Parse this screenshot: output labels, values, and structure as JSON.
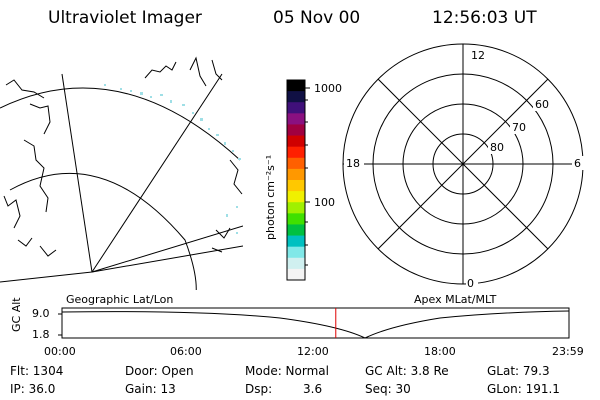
{
  "header": {
    "instrument": "Ultraviolet Imager",
    "date": "05 Nov 00",
    "time": "12:56:03 UT"
  },
  "colorbar": {
    "unit_label": "photon cm⁻²s⁻¹",
    "tick_labels": [
      "1000",
      "100"
    ],
    "colors": [
      "#000000",
      "#101044",
      "#40107a",
      "#8a1080",
      "#a00040",
      "#d00000",
      "#ff2000",
      "#ff6000",
      "#ff9800",
      "#ffc800",
      "#f0f000",
      "#a0f000",
      "#40e000",
      "#00c040",
      "#00c0c0",
      "#80e8e8",
      "#d0f0f0",
      "#f4f4f4"
    ]
  },
  "map_left": {
    "caption": "Geographic Lat/Lon"
  },
  "polar_right": {
    "caption": "Apex MLat/MLT",
    "mlt_labels": {
      "top": "12",
      "right": "6",
      "bottom": "0",
      "left": "18"
    },
    "lat_labels": [
      "60",
      "70",
      "80"
    ]
  },
  "altitude_strip": {
    "ylabel": "GC Alt",
    "yticks": [
      "9.0",
      "1.8"
    ],
    "xticks": [
      "00:00",
      "06:00",
      "12:00",
      "18:00",
      "23:59"
    ],
    "current_time_fraction": 0.54
  },
  "footer": {
    "flt": "Flt: 1304",
    "ip": "IP: 36.0",
    "door": "Door: Open",
    "gain": "Gain: 13",
    "mode": "Mode: Normal",
    "dsp_label": "Dsp:",
    "dsp_value": "3.6",
    "gc_alt": "GC Alt: 3.8 Re",
    "seq": "Seq: 30",
    "glat": "GLat: 79.3",
    "glon": "GLon: 191.1"
  }
}
